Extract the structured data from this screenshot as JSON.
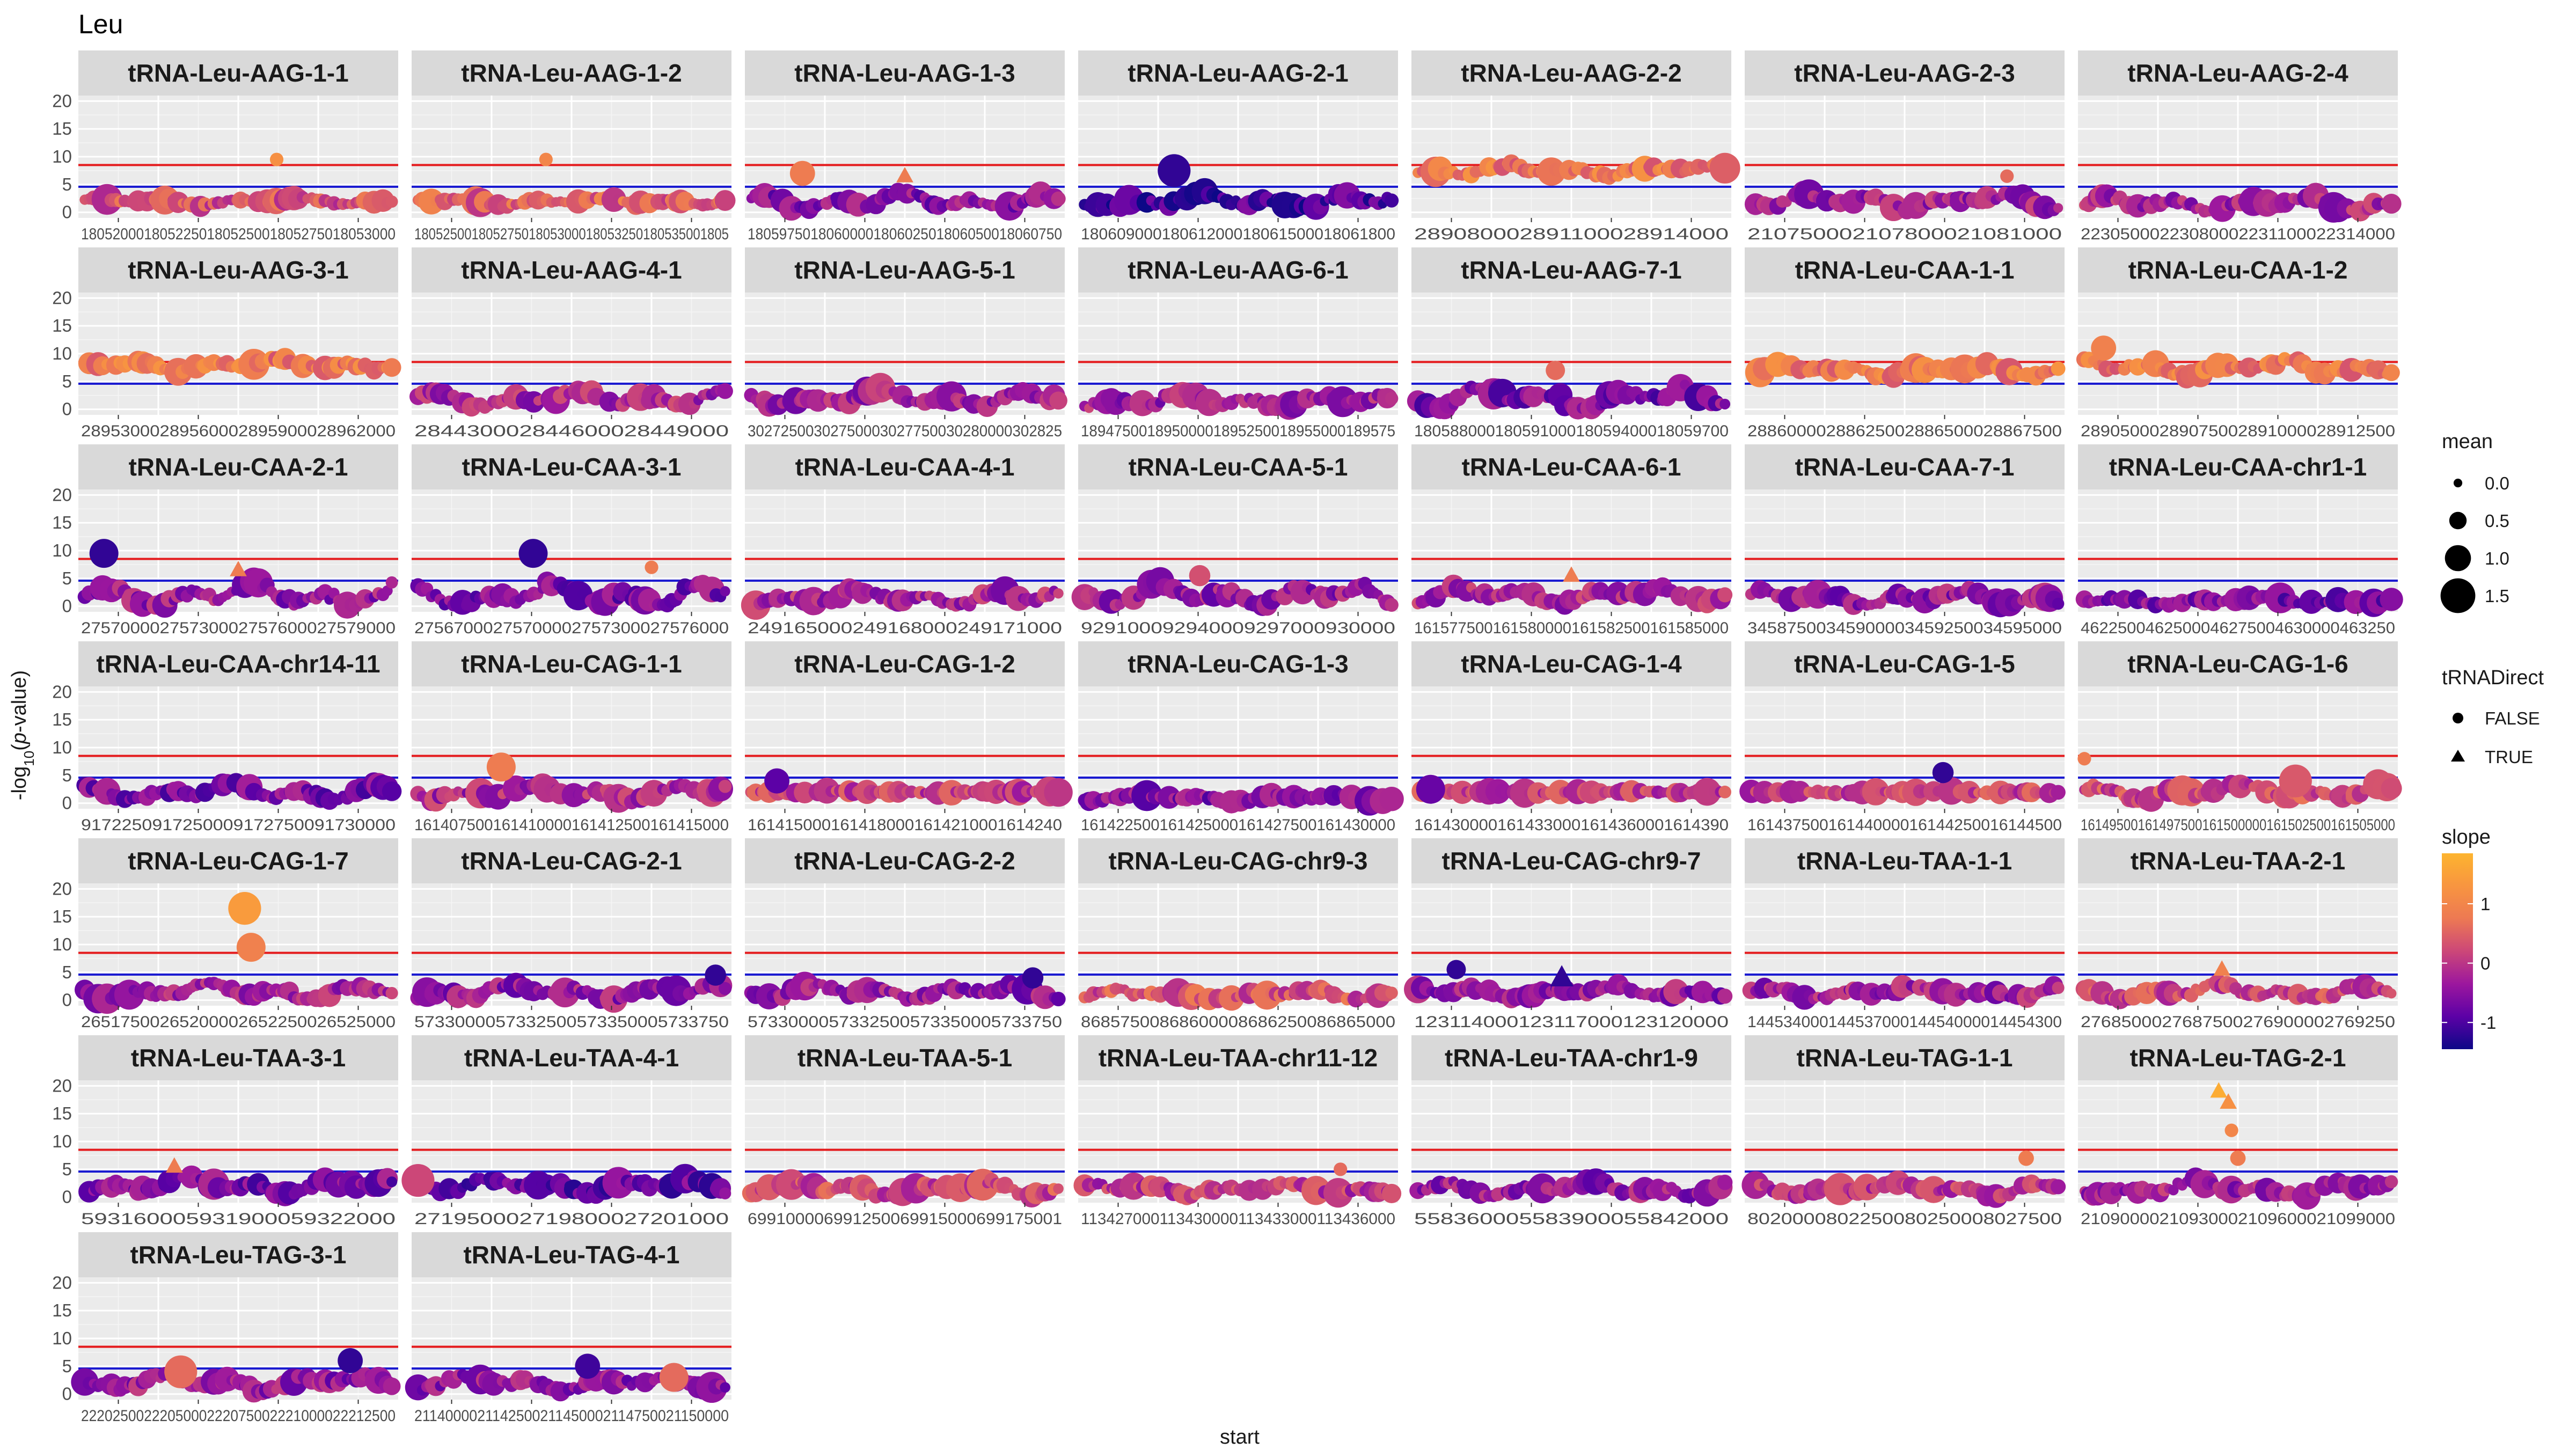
{
  "chart_data": {
    "type": "scatter",
    "title": "Leu",
    "xlabel": "start",
    "ylabel": "-log10(p-value)",
    "ylim": [
      -1,
      21
    ],
    "yticks": [
      0,
      5,
      10,
      15,
      20
    ],
    "ytick_labels": [
      "0",
      "5",
      "10",
      "15",
      "20"
    ],
    "grid": true,
    "reference_lines": [
      {
        "y": 8.5,
        "color": "#e41a1c"
      },
      {
        "y": 4.6,
        "color": "#1a1ad1"
      }
    ],
    "panel_shape": "wave",
    "legend_position": "right",
    "legends": {
      "mean": {
        "title": "mean",
        "entries": [
          {
            "value": 0.0,
            "label": "0.0"
          },
          {
            "value": 0.5,
            "label": "0.5"
          },
          {
            "value": 1.0,
            "label": "1.0"
          },
          {
            "value": 1.5,
            "label": "1.5"
          }
        ]
      },
      "tRNADirect": {
        "title": "tRNADirect",
        "entries": [
          {
            "label": "FALSE",
            "shape": "circle"
          },
          {
            "label": "TRUE",
            "shape": "triangle"
          }
        ]
      },
      "slope": {
        "title": "slope",
        "ticks": [
          {
            "value": 1,
            "label": "1"
          },
          {
            "value": 0,
            "label": "0"
          },
          {
            "value": -1,
            "label": "-1"
          }
        ],
        "range": [
          -1.45,
          1.85
        ],
        "colors": [
          "#0d0887",
          "#5c01a6",
          "#9c179e",
          "#cc4778",
          "#ed7953",
          "#f89540",
          "#fdb42f"
        ]
      }
    },
    "panels": [
      {
        "name": "tRNA-Leu-AAG-1-1",
        "xticks": [
          "18052000",
          "18052500",
          "18053000",
          "18053500",
          "18054000",
          "18054500",
          "18055000",
          "18055500",
          "18056000"
        ],
        "xtick_labels": [
          "1805200018052250180525001805275018053000"
        ],
        "base": 2,
        "amp": 1,
        "slope": 0.3,
        "peaks": [
          {
            "x": 0.62,
            "y": 9.5,
            "slope": 1.2,
            "size": 0.2,
            "shape": "circle"
          }
        ]
      },
      {
        "name": "tRNA-Leu-AAG-1-2",
        "xtick_labels": [
          "18052500180527501805300018053250180535001805"
        ],
        "base": 2,
        "amp": 1,
        "slope": 0.5,
        "peaks": [
          {
            "x": 0.42,
            "y": 9.5,
            "slope": 1.0,
            "size": 0.2,
            "shape": "circle"
          }
        ]
      },
      {
        "name": "tRNA-Leu-AAG-1-3",
        "xtick_labels": [
          "1805975018060000180602501806050018060750"
        ],
        "base": 2,
        "amp": 2,
        "slope": -0.5,
        "peaks": [
          {
            "x": 0.18,
            "y": 7,
            "slope": 0.8,
            "size": 0.8,
            "shape": "circle"
          },
          {
            "x": 0.5,
            "y": 6.5,
            "slope": 0.8,
            "size": 0.3,
            "shape": "triangle"
          }
        ]
      },
      {
        "name": "tRNA-Leu-AAG-2-1",
        "xtick_labels": [
          "18060900018061200018061500018061800"
        ],
        "base": 2,
        "amp": 2,
        "slope": -1.0,
        "peaks": [
          {
            "x": 0.3,
            "y": 7.5,
            "slope": -1.2,
            "size": 1.2,
            "shape": "circle"
          }
        ]
      },
      {
        "name": "tRNA-Leu-AAG-2-2",
        "xtick_labels": [
          "289080002891100028914000"
        ],
        "base": 7.5,
        "amp": 1.5,
        "slope": 0.8,
        "peaks": []
      },
      {
        "name": "tRNA-Leu-AAG-2-3",
        "xtick_labels": [
          "210750002107800021081000"
        ],
        "base": 2,
        "amp": 2,
        "slope": -0.3,
        "peaks": [
          {
            "x": 0.82,
            "y": 6.5,
            "slope": 0.6,
            "size": 0.2,
            "shape": "circle"
          }
        ]
      },
      {
        "name": "tRNA-Leu-AAG-2-4",
        "xtick_labels": [
          "22305000223080002231100022314000"
        ],
        "base": 1.5,
        "amp": 2,
        "slope": -0.2,
        "peaks": []
      },
      {
        "name": "tRNA-Leu-AAG-3-1",
        "xtick_labels": [
          "28953000289560002895900028962000"
        ],
        "base": 8,
        "amp": 1.5,
        "slope": 0.8,
        "peaks": []
      },
      {
        "name": "tRNA-Leu-AAG-4-1",
        "xtick_labels": [
          "284430002844600028449000"
        ],
        "base": 2,
        "amp": 2,
        "slope": -0.2,
        "peaks": []
      },
      {
        "name": "tRNA-Leu-AAG-5-1",
        "xtick_labels": [
          "30272500302750003027750030280000302825"
        ],
        "base": 2,
        "amp": 2,
        "slope": -0.3,
        "peaks": []
      },
      {
        "name": "tRNA-Leu-AAG-6-1",
        "xtick_labels": [
          "18947500189500001895250018955000189575"
        ],
        "base": 1.5,
        "amp": 2,
        "slope": -0.3,
        "peaks": []
      },
      {
        "name": "tRNA-Leu-AAG-7-1",
        "xtick_labels": [
          "18058800018059100018059400018059700"
        ],
        "base": 2,
        "amp": 3,
        "slope": -0.6,
        "peaks": [
          {
            "x": 0.45,
            "y": 7,
            "slope": 0.6,
            "size": 0.5,
            "shape": "circle"
          }
        ]
      },
      {
        "name": "tRNA-Leu-CAA-1-1",
        "xtick_labels": [
          "28860000288625002886500028867500"
        ],
        "base": 7,
        "amp": 1.5,
        "slope": 0.8,
        "peaks": []
      },
      {
        "name": "tRNA-Leu-CAA-1-2",
        "xtick_labels": [
          "28905000289075002891000028912500"
        ],
        "base": 7.5,
        "amp": 2,
        "slope": 0.8,
        "peaks": [
          {
            "x": 0.08,
            "y": 11,
            "slope": 0.9,
            "size": 0.8,
            "shape": "circle"
          }
        ]
      },
      {
        "name": "tRNA-Leu-CAA-2-1",
        "xtick_labels": [
          "27570000275730002757600027579000"
        ],
        "base": 2,
        "amp": 3,
        "slope": -0.4,
        "peaks": [
          {
            "x": 0.08,
            "y": 9.5,
            "slope": -1.2,
            "size": 1.0,
            "shape": "circle"
          },
          {
            "x": 0.5,
            "y": 6.5,
            "slope": 0.8,
            "size": 0.3,
            "shape": "triangle"
          }
        ]
      },
      {
        "name": "tRNA-Leu-CAA-3-1",
        "xtick_labels": [
          "27567000275700002757300027576000"
        ],
        "base": 2,
        "amp": 3,
        "slope": -0.6,
        "peaks": [
          {
            "x": 0.38,
            "y": 9.5,
            "slope": -1.2,
            "size": 1.0,
            "shape": "circle"
          },
          {
            "x": 0.75,
            "y": 7,
            "slope": 0.8,
            "size": 0.2,
            "shape": "circle"
          }
        ]
      },
      {
        "name": "tRNA-Leu-CAA-4-1",
        "xtick_labels": [
          "249165000249168000249171000"
        ],
        "base": 1.5,
        "amp": 2,
        "slope": -0.2,
        "peaks": []
      },
      {
        "name": "tRNA-Leu-CAA-5-1",
        "xtick_labels": [
          "929100092940009297000930000"
        ],
        "base": 2,
        "amp": 3,
        "slope": -0.4,
        "peaks": [
          {
            "x": 0.38,
            "y": 5.5,
            "slope": 0.3,
            "size": 0.6,
            "shape": "circle"
          }
        ]
      },
      {
        "name": "tRNA-Leu-CAA-6-1",
        "xtick_labels": [
          "161577500161580000161582500161585000"
        ],
        "base": 2,
        "amp": 2,
        "slope": -0.2,
        "peaks": [
          {
            "x": 0.5,
            "y": 5.5,
            "slope": 0.8,
            "size": 0.3,
            "shape": "triangle"
          }
        ]
      },
      {
        "name": "tRNA-Leu-CAA-7-1",
        "xtick_labels": [
          "34587500345900003459250034595000"
        ],
        "base": 1.5,
        "amp": 2,
        "slope": -0.4,
        "peaks": []
      },
      {
        "name": "tRNA-Leu-CAA-chr1-1",
        "xtick_labels": [
          "4622500462500046275004630000463250"
        ],
        "base": 1,
        "amp": 1,
        "slope": -0.6,
        "peaks": []
      },
      {
        "name": "tRNA-Leu-CAA-chr14-11",
        "xtick_labels": [
          "9172250917250009172750091730000"
        ],
        "base": 2,
        "amp": 2,
        "slope": -0.6,
        "peaks": []
      },
      {
        "name": "tRNA-Leu-CAG-1-1",
        "xtick_labels": [
          "161407500161410000161412500161415000"
        ],
        "base": 2,
        "amp": 2,
        "slope": -0.2,
        "peaks": [
          {
            "x": 0.28,
            "y": 6.5,
            "slope": 0.8,
            "size": 1.0,
            "shape": "circle"
          }
        ]
      },
      {
        "name": "tRNA-Leu-CAG-1-2",
        "xtick_labels": [
          "1614150001614180001614210001614240"
        ],
        "base": 2,
        "amp": 0.3,
        "slope": 0.1,
        "peaks": [
          {
            "x": 0.1,
            "y": 4,
            "slope": -0.9,
            "size": 0.8,
            "shape": "circle"
          }
        ]
      },
      {
        "name": "tRNA-Leu-CAG-1-3",
        "xtick_labels": [
          "161422500161425000161427500161430000"
        ],
        "base": 1,
        "amp": 1,
        "slope": -0.5,
        "peaks": []
      },
      {
        "name": "tRNA-Leu-CAG-1-4",
        "xtick_labels": [
          "1614300001614330001614360001614390"
        ],
        "base": 2,
        "amp": 0.3,
        "slope": 0.1,
        "peaks": [
          {
            "x": 0.06,
            "y": 2.5,
            "slope": -0.8,
            "size": 1.0,
            "shape": "circle"
          }
        ]
      },
      {
        "name": "tRNA-Leu-CAG-1-5",
        "xtick_labels": [
          "16143750016144000016144250016144500"
        ],
        "base": 2,
        "amp": 0.3,
        "slope": 0.1,
        "peaks": [
          {
            "x": 0.62,
            "y": 5.5,
            "slope": -1.2,
            "size": 0.6,
            "shape": "circle"
          }
        ]
      },
      {
        "name": "tRNA-Leu-CAG-1-6",
        "xtick_labels": [
          "16149500161497500161500000161502500161505000"
        ],
        "base": 2,
        "amp": 2,
        "slope": 0.2,
        "peaks": [
          {
            "x": 0.02,
            "y": 8,
            "slope": 0.8,
            "size": 0.2,
            "shape": "circle"
          },
          {
            "x": 0.68,
            "y": 4,
            "slope": 0.4,
            "size": 1.2,
            "shape": "circle"
          }
        ]
      },
      {
        "name": "tRNA-Leu-CAG-1-7",
        "xtick_labels": [
          "26517500265200002652250026525000"
        ],
        "base": 1.5,
        "amp": 2,
        "slope": -0.3,
        "peaks": [
          {
            "x": 0.52,
            "y": 16.5,
            "slope": 1.4,
            "size": 1.2,
            "shape": "circle"
          },
          {
            "x": 0.54,
            "y": 9.5,
            "slope": 0.9,
            "size": 1.0,
            "shape": "circle"
          }
        ]
      },
      {
        "name": "tRNA-Leu-CAG-2-1",
        "xtick_labels": [
          "5733000057332500573350005733750"
        ],
        "base": 1.5,
        "amp": 2,
        "slope": -0.4,
        "peaks": [
          {
            "x": 0.95,
            "y": 4.5,
            "slope": -1.2,
            "size": 0.6,
            "shape": "circle"
          }
        ]
      },
      {
        "name": "tRNA-Leu-CAG-2-2",
        "xtick_labels": [
          "5733000057332500573350005733750"
        ],
        "base": 1.5,
        "amp": 2,
        "slope": -0.4,
        "peaks": [
          {
            "x": 0.9,
            "y": 4,
            "slope": -1.2,
            "size": 0.6,
            "shape": "circle"
          }
        ]
      },
      {
        "name": "tRNA-Leu-CAG-chr9-3",
        "xtick_labels": [
          "86857500868600008686250086865000"
        ],
        "base": 1,
        "amp": 1.5,
        "slope": 0.3,
        "peaks": []
      },
      {
        "name": "tRNA-Leu-CAG-chr9-7",
        "xtick_labels": [
          "123114000123117000123120000"
        ],
        "base": 1.5,
        "amp": 1.5,
        "slope": -0.4,
        "peaks": [
          {
            "x": 0.14,
            "y": 5.5,
            "slope": -1.2,
            "size": 0.5,
            "shape": "circle"
          },
          {
            "x": 0.47,
            "y": 4,
            "slope": -1.2,
            "size": 0.6,
            "shape": "triangle"
          }
        ]
      },
      {
        "name": "tRNA-Leu-TAA-1-1",
        "xtick_labels": [
          "14453400014453700014454000014454300"
        ],
        "base": 1.5,
        "amp": 1.5,
        "slope": -0.3,
        "peaks": []
      },
      {
        "name": "tRNA-Leu-TAA-2-1",
        "xtick_labels": [
          "2768500027687500276900002769250"
        ],
        "base": 1.5,
        "amp": 2,
        "slope": 0.2,
        "peaks": [
          {
            "x": 0.45,
            "y": 5.5,
            "slope": 0.9,
            "size": 0.3,
            "shape": "triangle"
          }
        ]
      },
      {
        "name": "tRNA-Leu-TAA-3-1",
        "xtick_labels": [
          "593160005931900059322000"
        ],
        "base": 2,
        "amp": 2,
        "slope": -0.6,
        "peaks": [
          {
            "x": 0.3,
            "y": 5.5,
            "slope": 0.8,
            "size": 0.3,
            "shape": "triangle"
          }
        ]
      },
      {
        "name": "tRNA-Leu-TAA-4-1",
        "xtick_labels": [
          "271950002719800027201000"
        ],
        "base": 2,
        "amp": 2,
        "slope": -0.8,
        "peaks": [
          {
            "x": 0.02,
            "y": 3,
            "slope": 0.2,
            "size": 1.2,
            "shape": "circle"
          }
        ]
      },
      {
        "name": "tRNA-Leu-TAA-5-1",
        "xtick_labels": [
          "699100006991250069915000699175001"
        ],
        "base": 1.5,
        "amp": 2,
        "slope": 0.2,
        "peaks": []
      },
      {
        "name": "tRNA-Leu-TAA-chr11-12",
        "xtick_labels": [
          "113427000113430000113433000113436000"
        ],
        "base": 1.5,
        "amp": 1.5,
        "slope": 0.0,
        "peaks": [
          {
            "x": 0.82,
            "y": 5,
            "slope": 0.6,
            "size": 0.2,
            "shape": "circle"
          }
        ]
      },
      {
        "name": "tRNA-Leu-TAA-chr1-9",
        "xtick_labels": [
          "558360005583900055842000"
        ],
        "base": 1.5,
        "amp": 2,
        "slope": -0.4,
        "peaks": []
      },
      {
        "name": "tRNA-Leu-TAG-1-1",
        "xtick_labels": [
          "8020000802250080250008027500"
        ],
        "base": 1.5,
        "amp": 2,
        "slope": 0.0,
        "peaks": [
          {
            "x": 0.88,
            "y": 7,
            "slope": 0.8,
            "size": 0.3,
            "shape": "circle"
          }
        ]
      },
      {
        "name": "tRNA-Leu-TAG-2-1",
        "xtick_labels": [
          "21090000210930002109600021099000"
        ],
        "base": 1.5,
        "amp": 2,
        "slope": -0.3,
        "peaks": [
          {
            "x": 0.44,
            "y": 19,
            "slope": 1.7,
            "size": 0.3,
            "shape": "triangle"
          },
          {
            "x": 0.47,
            "y": 17,
            "slope": 1.2,
            "size": 0.3,
            "shape": "triangle"
          },
          {
            "x": 0.48,
            "y": 12,
            "slope": 1.0,
            "size": 0.2,
            "shape": "circle"
          },
          {
            "x": 0.5,
            "y": 7,
            "slope": 0.8,
            "size": 0.3,
            "shape": "circle"
          }
        ]
      },
      {
        "name": "tRNA-Leu-TAG-3-1",
        "xtick_labels": [
          "2220250022205000222075002221000022212500"
        ],
        "base": 2,
        "amp": 2,
        "slope": -0.4,
        "peaks": [
          {
            "x": 0.32,
            "y": 4,
            "slope": 0.6,
            "size": 1.2,
            "shape": "circle"
          },
          {
            "x": 0.85,
            "y": 6,
            "slope": -1.2,
            "size": 0.8,
            "shape": "circle"
          }
        ]
      },
      {
        "name": "tRNA-Leu-TAG-4-1",
        "xtick_labels": [
          "2114000021142500211450002114750021150000"
        ],
        "base": 2,
        "amp": 2,
        "slope": -0.4,
        "peaks": [
          {
            "x": 0.55,
            "y": 5,
            "slope": -1.1,
            "size": 0.8,
            "shape": "circle"
          },
          {
            "x": 0.82,
            "y": 3,
            "slope": 0.6,
            "size": 1.0,
            "shape": "circle"
          }
        ]
      }
    ]
  }
}
